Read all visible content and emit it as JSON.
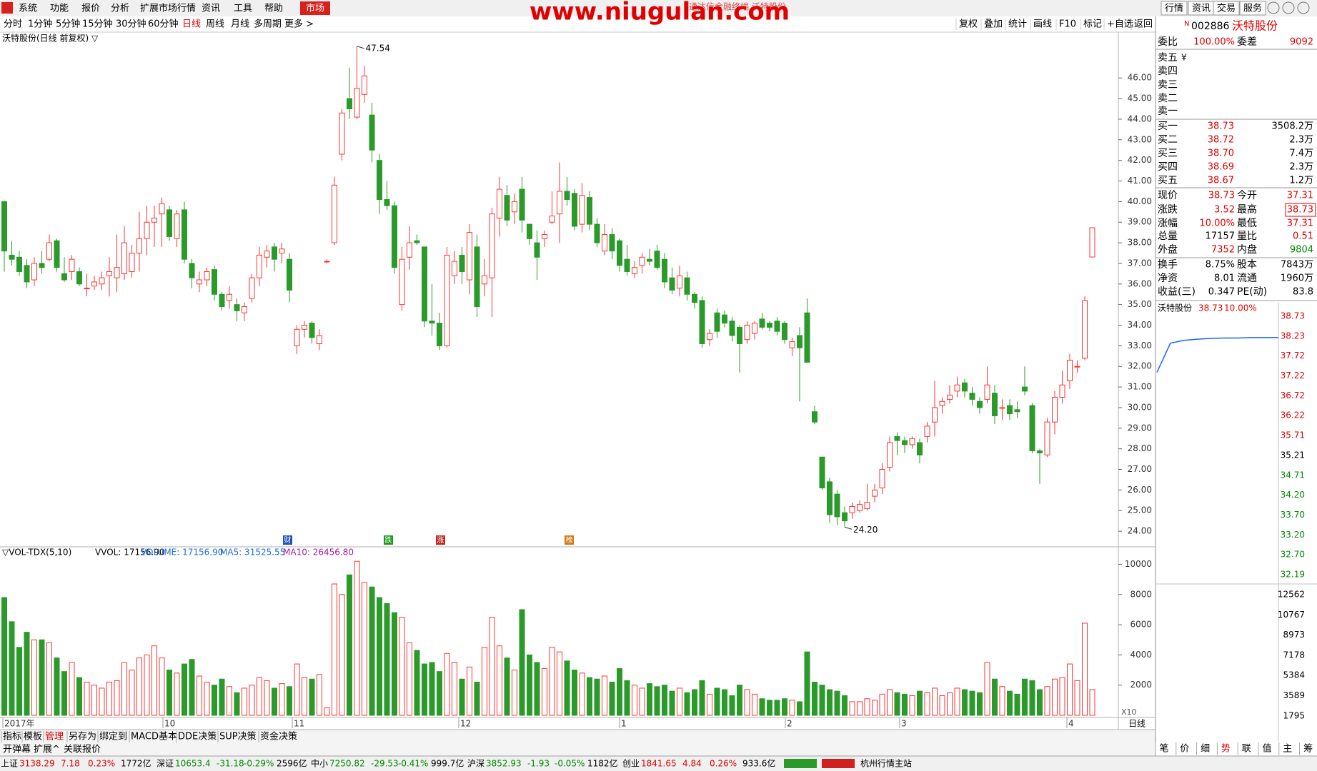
{
  "menu": {
    "items": [
      "系统",
      "功能",
      "报价",
      "分析",
      "扩展市场行情",
      "资讯",
      "工具",
      "帮助"
    ],
    "market": "市场",
    "window_title": "通达信金融终端 沃特股份",
    "watermark": "www.niugulan.com",
    "right_buttons": [
      "行情",
      "资讯",
      "交易",
      "服务"
    ]
  },
  "toolbar": {
    "periods": [
      "分时",
      "1分钟",
      "5分钟",
      "15分钟",
      "30分钟",
      "60分钟",
      "日线",
      "周线",
      "月线",
      "多周期",
      "更多 >"
    ],
    "active": 6,
    "tools": [
      "复权",
      "叠加",
      "统计",
      "画线",
      "F10",
      "标记",
      "+自选",
      "返回"
    ]
  },
  "chart_data": {
    "type": "candlestick",
    "title": "沃特股份(日线 前复权) ▽",
    "up_color": "#ff3232",
    "down_color": "#2a9a2a",
    "high_label": "47.54",
    "low_label": "24.20",
    "candles": [
      [
        40.0,
        40.0,
        36.6,
        37.6
      ],
      [
        37.4,
        38.1,
        36.9,
        37.2
      ],
      [
        37.3,
        37.6,
        36.4,
        36.6
      ],
      [
        36.9,
        37.2,
        35.8,
        36.1
      ],
      [
        36.2,
        37.3,
        35.9,
        37.0
      ],
      [
        37.0,
        37.6,
        36.5,
        36.8
      ],
      [
        37.2,
        38.4,
        37.1,
        38.0
      ],
      [
        38.1,
        38.2,
        36.6,
        36.8
      ],
      [
        36.5,
        37.3,
        36.1,
        36.2
      ],
      [
        36.6,
        37.4,
        36.2,
        37.2
      ],
      [
        36.6,
        36.8,
        35.9,
        36.0
      ],
      [
        35.8,
        36.5,
        35.4,
        35.8
      ],
      [
        35.9,
        36.4,
        35.7,
        36.1
      ],
      [
        36.0,
        36.6,
        35.7,
        36.3
      ],
      [
        36.4,
        37.3,
        35.4,
        36.6
      ],
      [
        36.3,
        38.4,
        35.6,
        36.8
      ],
      [
        36.5,
        38.8,
        36.2,
        38.0
      ],
      [
        36.6,
        37.9,
        36.3,
        37.5
      ],
      [
        37.5,
        39.5,
        36.6,
        38.2
      ],
      [
        38.2,
        39.8,
        37.4,
        39.0
      ],
      [
        39.0,
        39.8,
        37.8,
        39.2
      ],
      [
        39.4,
        40.2,
        37.8,
        39.9
      ],
      [
        39.6,
        39.8,
        38.1,
        38.3
      ],
      [
        38.2,
        39.6,
        37.8,
        39.4
      ],
      [
        39.6,
        40.0,
        37.0,
        37.2
      ],
      [
        37.0,
        37.2,
        35.8,
        36.3
      ],
      [
        36.0,
        36.6,
        35.6,
        36.2
      ],
      [
        36.2,
        36.8,
        35.9,
        36.6
      ],
      [
        36.7,
        36.9,
        35.2,
        35.5
      ],
      [
        35.5,
        35.6,
        34.7,
        34.9
      ],
      [
        35.2,
        35.9,
        34.8,
        35.5
      ],
      [
        35.0,
        35.3,
        34.2,
        34.7
      ],
      [
        34.6,
        35.1,
        34.2,
        34.9
      ],
      [
        35.3,
        36.5,
        35.1,
        36.3
      ],
      [
        36.3,
        37.8,
        35.9,
        37.4
      ],
      [
        37.3,
        37.9,
        36.8,
        37.6
      ],
      [
        37.8,
        38.0,
        36.6,
        37.2
      ],
      [
        37.5,
        38.0,
        37.0,
        37.7
      ],
      [
        37.2,
        37.5,
        35.1,
        35.7
      ],
      [
        33.0,
        34.0,
        32.6,
        33.8
      ],
      [
        33.8,
        34.2,
        33.4,
        34.0
      ],
      [
        34.1,
        34.2,
        33.1,
        33.4
      ],
      [
        33.1,
        33.8,
        32.8,
        33.5
      ],
      [
        37.1,
        37.2,
        37.0,
        37.1
      ],
      [
        38.0,
        41.2,
        37.9,
        40.8
      ],
      [
        42.3,
        44.5,
        42.0,
        44.3
      ],
      [
        45.0,
        46.5,
        44.0,
        44.5
      ],
      [
        44.1,
        47.54,
        44.0,
        45.5
      ],
      [
        45.2,
        46.6,
        44.8,
        46.1
      ],
      [
        44.2,
        44.8,
        41.9,
        42.5
      ],
      [
        42.0,
        42.3,
        39.4,
        40.1
      ],
      [
        40.1,
        41.0,
        39.6,
        39.8
      ],
      [
        39.8,
        40.0,
        36.5,
        36.8
      ],
      [
        35.0,
        37.8,
        34.7,
        37.2
      ],
      [
        37.3,
        38.8,
        36.7,
        38.0
      ],
      [
        38.1,
        38.4,
        37.9,
        38.0
      ],
      [
        37.8,
        37.8,
        33.9,
        34.2
      ],
      [
        34.2,
        36.0,
        33.5,
        34.1
      ],
      [
        34.1,
        34.6,
        32.8,
        33.0
      ],
      [
        33.0,
        37.8,
        32.9,
        37.4
      ],
      [
        36.4,
        37.6,
        36.0,
        37.1
      ],
      [
        37.4,
        37.8,
        36.0,
        36.6
      ],
      [
        36.2,
        38.9,
        35.5,
        38.5
      ],
      [
        37.8,
        38.4,
        34.4,
        34.9
      ],
      [
        36.0,
        37.2,
        35.4,
        36.4
      ],
      [
        36.3,
        39.7,
        34.4,
        39.4
      ],
      [
        39.2,
        41.2,
        38.3,
        40.6
      ],
      [
        40.3,
        40.8,
        38.8,
        39.1
      ],
      [
        39.5,
        40.4,
        38.9,
        40.0
      ],
      [
        40.6,
        41.2,
        38.5,
        39.1
      ],
      [
        38.9,
        38.9,
        37.9,
        38.2
      ],
      [
        38.0,
        38.6,
        36.2,
        37.3
      ],
      [
        38.2,
        38.6,
        37.8,
        38.4
      ],
      [
        39.0,
        40.5,
        38.9,
        39.3
      ],
      [
        39.4,
        41.9,
        38.0,
        40.5
      ],
      [
        40.5,
        41.2,
        39.8,
        40.1
      ],
      [
        40.4,
        40.6,
        38.6,
        38.8
      ],
      [
        38.9,
        40.9,
        38.5,
        40.3
      ],
      [
        40.2,
        40.5,
        38.6,
        38.9
      ],
      [
        38.9,
        39.2,
        37.8,
        38.0
      ],
      [
        37.6,
        38.9,
        37.4,
        38.4
      ],
      [
        38.4,
        38.7,
        37.2,
        37.6
      ],
      [
        38.1,
        38.2,
        36.6,
        36.9
      ],
      [
        37.2,
        37.9,
        36.4,
        36.6
      ],
      [
        36.5,
        37.1,
        36.3,
        36.8
      ],
      [
        36.9,
        37.5,
        36.5,
        37.3
      ],
      [
        37.2,
        37.7,
        36.9,
        37.1
      ],
      [
        37.6,
        37.9,
        36.7,
        36.8
      ],
      [
        37.2,
        37.5,
        35.8,
        36.1
      ],
      [
        36.3,
        36.8,
        35.5,
        35.7
      ],
      [
        35.8,
        36.9,
        35.4,
        36.4
      ],
      [
        36.3,
        36.6,
        35.2,
        35.5
      ],
      [
        35.5,
        35.6,
        34.8,
        35.1
      ],
      [
        35.2,
        35.4,
        32.9,
        33.1
      ],
      [
        33.3,
        33.8,
        33.0,
        33.6
      ],
      [
        34.6,
        34.8,
        33.4,
        33.7
      ],
      [
        34.5,
        34.7,
        33.9,
        34.1
      ],
      [
        34.2,
        34.4,
        33.2,
        33.5
      ],
      [
        33.9,
        34.0,
        31.7,
        33.1
      ],
      [
        33.3,
        34.2,
        33.1,
        34.0
      ],
      [
        33.6,
        34.2,
        33.3,
        34.1
      ],
      [
        34.3,
        34.6,
        33.8,
        33.9
      ],
      [
        34.1,
        34.2,
        33.7,
        33.9
      ],
      [
        34.2,
        34.4,
        33.5,
        33.7
      ],
      [
        34.1,
        34.2,
        33.1,
        33.3
      ],
      [
        32.9,
        33.4,
        32.5,
        33.2
      ],
      [
        33.5,
        33.9,
        30.3,
        32.9
      ],
      [
        34.6,
        35.3,
        32.2,
        32.2
      ],
      [
        29.8,
        30.1,
        29.2,
        29.3
      ],
      [
        27.6,
        27.6,
        26.0,
        26.1
      ],
      [
        26.4,
        26.6,
        24.4,
        24.8
      ],
      [
        25.8,
        26.0,
        24.3,
        24.7
      ],
      [
        24.9,
        25.2,
        24.2,
        24.5
      ],
      [
        24.9,
        25.4,
        24.6,
        25.2
      ],
      [
        25.0,
        25.5,
        24.9,
        25.3
      ],
      [
        25.1,
        26.3,
        25.0,
        25.4
      ],
      [
        25.7,
        26.3,
        25.4,
        26.0
      ],
      [
        26.1,
        27.3,
        25.8,
        27.0
      ],
      [
        27.1,
        28.6,
        26.9,
        28.3
      ],
      [
        28.6,
        28.8,
        27.7,
        28.4
      ],
      [
        28.4,
        28.6,
        27.8,
        28.2
      ],
      [
        28.2,
        28.6,
        28.0,
        28.5
      ],
      [
        28.3,
        28.5,
        27.3,
        27.7
      ],
      [
        28.6,
        29.3,
        28.3,
        29.1
      ],
      [
        29.3,
        31.3,
        28.6,
        30.0
      ],
      [
        30.1,
        30.5,
        29.7,
        30.3
      ],
      [
        30.4,
        31.1,
        30.2,
        30.6
      ],
      [
        30.8,
        31.5,
        30.5,
        31.1
      ],
      [
        31.2,
        31.4,
        30.5,
        30.8
      ],
      [
        30.7,
        31.0,
        30.1,
        30.4
      ],
      [
        30.3,
        30.5,
        29.7,
        30.0
      ],
      [
        30.4,
        32.0,
        30.2,
        31.1
      ],
      [
        30.7,
        31.1,
        29.2,
        29.6
      ],
      [
        30.0,
        30.4,
        29.4,
        30.0
      ],
      [
        30.1,
        30.4,
        29.4,
        29.7
      ],
      [
        29.9,
        30.3,
        29.5,
        29.8
      ],
      [
        31.0,
        32.0,
        30.6,
        30.8
      ],
      [
        30.1,
        30.2,
        27.8,
        27.9
      ],
      [
        27.9,
        28.0,
        26.3,
        27.8
      ],
      [
        27.7,
        29.5,
        27.6,
        29.3
      ],
      [
        29.3,
        30.8,
        28.7,
        30.5
      ],
      [
        30.5,
        31.8,
        30.2,
        31.1
      ],
      [
        31.3,
        32.6,
        30.9,
        32.3
      ],
      [
        32.0,
        32.3,
        31.7,
        32.0
      ],
      [
        32.4,
        35.4,
        32.3,
        35.2
      ],
      [
        37.31,
        38.73,
        37.31,
        38.73
      ]
    ],
    "ylim": [
      23.38,
      48.26
    ],
    "yticks": [
      {
        "value": 24,
        "label": "24.00"
      },
      {
        "value": 25,
        "label": "25.00"
      },
      {
        "value": 26,
        "label": "26.00"
      },
      {
        "value": 27,
        "label": "27.00"
      },
      {
        "value": 28,
        "label": "28.00"
      },
      {
        "value": 29,
        "label": "29.00"
      },
      {
        "value": 30,
        "label": "30.00"
      },
      {
        "value": 31,
        "label": "31.00"
      },
      {
        "value": 32,
        "label": "32.00"
      },
      {
        "value": 33,
        "label": "33.00"
      },
      {
        "value": 34,
        "label": "34.00"
      },
      {
        "value": 35,
        "label": "35.00"
      },
      {
        "value": 36,
        "label": "36.00"
      },
      {
        "value": 37,
        "label": "37.00"
      },
      {
        "value": 38,
        "label": "38.00"
      },
      {
        "value": 39,
        "label": "39.00"
      },
      {
        "value": 40,
        "label": "40.00"
      },
      {
        "value": 41,
        "label": "41.00"
      },
      {
        "value": 42,
        "label": "42.00"
      },
      {
        "value": 43,
        "label": "43.00"
      },
      {
        "value": 44,
        "label": "44.00"
      },
      {
        "value": 45,
        "label": "45.00"
      },
      {
        "value": 46,
        "label": "46.00"
      }
    ],
    "events": [
      "财",
      "跌",
      "涨",
      "榜"
    ],
    "volume": {
      "header": "▽VOL-TDX(5,10)",
      "vvol": "VVOL: 17156.90",
      "volume_label": "VOLUME: 17156.90",
      "ma5": "MA5: 31525.55",
      "ma10": "MA10: 26456.80",
      "multiplier": "X10",
      "values": [
        7800,
        6200,
        4500,
        5500,
        5000,
        5000,
        4800,
        3800,
        2900,
        3500,
        2500,
        2200,
        2000,
        1800,
        2200,
        2300,
        3500,
        3000,
        3800,
        4000,
        4600,
        3800,
        3000,
        2800,
        3400,
        3700,
        2600,
        2200,
        2000,
        2400,
        1900,
        1500,
        1800,
        2000,
        2500,
        2300,
        1800,
        2100,
        1900,
        3400,
        2500,
        2400,
        2700,
        500,
        8700,
        8000,
        9300,
        10200,
        8800,
        8500,
        7800,
        7400,
        6800,
        6500,
        4800,
        4300,
        3400,
        3500,
        2900,
        4100,
        3500,
        2400,
        3200,
        2200,
        4500,
        6500,
        4600,
        3800,
        3000,
        7000,
        4000,
        3500,
        3100,
        4500,
        4200,
        3600,
        3000,
        2800,
        2500,
        2400,
        2600,
        2200,
        3100,
        2300,
        2000,
        1800,
        2100,
        1900,
        2000,
        1600,
        1800,
        1500,
        1700,
        2300,
        1400,
        1800,
        1700,
        1300,
        2000,
        1700,
        1400,
        1100,
        1000,
        1000,
        1100,
        1000,
        900,
        4200,
        2200,
        2000,
        1700,
        1600,
        1300,
        900,
        900,
        1100,
        1000,
        1400,
        1700,
        1500,
        1400,
        1300,
        1600,
        1500,
        1800,
        1300,
        1500,
        1800,
        1700,
        1600,
        1500,
        3500,
        2400,
        1900,
        1600,
        1400,
        2400,
        2300,
        1700,
        1900,
        2400,
        2500,
        3400,
        2300,
        6100,
        1700
      ],
      "ylim": [
        0,
        10590
      ],
      "yticks": [
        2000,
        4000,
        6000,
        8000,
        10000
      ]
    },
    "months": [
      "2017年",
      "10",
      "11",
      "12",
      "1",
      "2",
      "3",
      "4"
    ],
    "period_label": "日线"
  },
  "quote": {
    "n_mark": "N",
    "code": "002886",
    "name": "沃特股份",
    "top": {
      "cells": [
        "委比",
        "100.00%",
        "委差",
        "9092"
      ],
      "colors": [
        "k",
        "r",
        "k",
        "r"
      ]
    },
    "sell": [
      "卖五",
      "卖四",
      "卖三",
      "卖二",
      "卖一"
    ],
    "sell_mark": "¥",
    "buy": [
      [
        "买一",
        "38.73",
        "3508.2万"
      ],
      [
        "买二",
        "38.72",
        "2.3万"
      ],
      [
        "买三",
        "38.70",
        "7.4万"
      ],
      [
        "买四",
        "38.69",
        "2.3万"
      ],
      [
        "买五",
        "38.67",
        "1.2万"
      ]
    ],
    "stats": [
      {
        "cells": [
          "现价",
          "38.73",
          "今开",
          "37.31"
        ],
        "colors": [
          "k",
          "r",
          "k",
          "r"
        ]
      },
      {
        "cells": [
          "涨跌",
          "3.52",
          "最高",
          "38.73"
        ],
        "colors": [
          "k",
          "r",
          "k",
          "r"
        ]
      },
      {
        "cells": [
          "涨幅",
          "10.00%",
          "最低",
          "37.31"
        ],
        "colors": [
          "k",
          "r",
          "k",
          "r"
        ]
      },
      {
        "cells": [
          "总量",
          "17157",
          "量比",
          "0.51"
        ],
        "colors": [
          "k",
          "k",
          "k",
          "r"
        ]
      },
      {
        "cells": [
          "外盘",
          "7352",
          "内盘",
          "9804"
        ],
        "colors": [
          "k",
          "r",
          "k",
          "g"
        ]
      }
    ],
    "stats2": [
      {
        "cells": [
          "换手",
          "8.75%",
          "股本",
          "7843万"
        ],
        "colors": [
          "k",
          "k",
          "k",
          "k"
        ]
      },
      {
        "cells": [
          "净资",
          "8.01",
          "流通",
          "1960万"
        ],
        "colors": [
          "k",
          "k",
          "k",
          "k"
        ]
      },
      {
        "cells": [
          "收益(三)",
          "0.347",
          "PE(动)",
          "83.8"
        ],
        "colors": [
          "k",
          "k",
          "k",
          "k"
        ]
      }
    ]
  },
  "mini_chart": {
    "title": "沃特股份",
    "price": "38.73",
    "pct": "10.00%",
    "price_labels": [
      "38.73",
      "38.23",
      "37.72",
      "37.22",
      "36.72",
      "36.22",
      "35.71",
      "35.21",
      "34.71",
      "34.20",
      "33.70",
      "33.20",
      "32.70",
      "32.19"
    ],
    "volume_labels": [
      "12562",
      "10767",
      "8973",
      "7178",
      "5384",
      "3589",
      "1795"
    ],
    "intraday": [
      37.31,
      38.05,
      38.12,
      38.15,
      38.17,
      38.18,
      38.18,
      38.19,
      38.19,
      38.19
    ],
    "ylim": [
      32.19,
      38.73
    ],
    "tabs": [
      "笔",
      "价",
      "细",
      "势",
      "联",
      "值",
      "主",
      "筹"
    ]
  },
  "indicator_tabs": [
    "指标",
    "模板",
    "管理",
    "另存为",
    "绑定到",
    "MACD基本",
    "DDE决策",
    "SUP决策",
    "资金决策"
  ],
  "extra_tabs": [
    "开弹幕",
    "扩展^",
    "关联报价"
  ],
  "status": [
    {
      "name": "上证",
      "value": "3138.29",
      "chg": "7.18",
      "pct": "0.23%",
      "amt": "1772亿"
    },
    {
      "name": "深证",
      "value": "10653.4",
      "chg": "-31.18",
      "pct": "-0.29%",
      "amt": "2596亿"
    },
    {
      "name": "中小",
      "value": "7250.82",
      "chg": "-29.53",
      "pct": "-0.41%",
      "amt": "999.7亿"
    },
    {
      "name": "沪深",
      "value": "3852.93",
      "chg": "-1.93",
      "pct": "-0.05%",
      "amt": "1182亿"
    },
    {
      "name": "创业",
      "value": "1841.65",
      "chg": "4.84",
      "pct": "0.26%",
      "amt": "933.6亿"
    }
  ],
  "server": "杭州行情主站"
}
